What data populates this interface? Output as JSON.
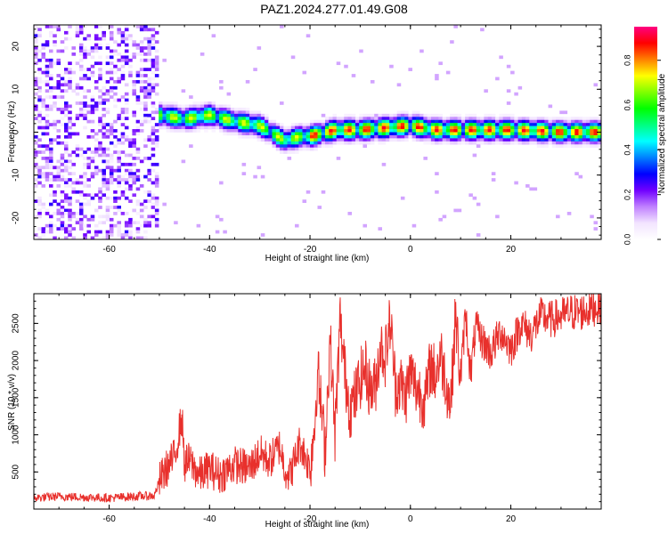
{
  "title": "PAZ1.2024.277.01.49.G08",
  "chart_data": [
    {
      "type": "heatmap",
      "xlabel": "Height of straight line (km)",
      "ylabel": "Frequency (Hz)",
      "xlim": [
        -75,
        38
      ],
      "ylim": [
        -25,
        25
      ],
      "xticks": [
        -60,
        -40,
        -20,
        0,
        20
      ],
      "yticks": [
        -20,
        -10,
        0,
        10,
        20
      ],
      "colorbar": {
        "label": "Normalized spectral amplitude",
        "range": [
          0,
          0.95
        ],
        "ticks": [
          0.0,
          0.2,
          0.4,
          0.6,
          0.8
        ],
        "colors": [
          "#ffffff",
          "#f2e4ff",
          "#c080ff",
          "#7000ff",
          "#0000ff",
          "#0080ff",
          "#00ffff",
          "#00ff80",
          "#00ff00",
          "#80ff00",
          "#ffff00",
          "#ff8000",
          "#ff0000",
          "#ff0080"
        ]
      },
      "noise_region_x": [
        -75,
        -50
      ],
      "signal_track": {
        "x": [
          -50,
          -45,
          -40,
          -35,
          -30,
          -25,
          -22,
          -20,
          -15,
          -10,
          -5,
          0,
          5,
          10,
          15,
          20,
          25,
          30,
          38
        ],
        "y": [
          4,
          3,
          4,
          2.5,
          1.5,
          -2,
          -1,
          -1,
          0.5,
          0.5,
          1,
          1.5,
          0.5,
          0.5,
          0.5,
          0.5,
          0.3,
          0,
          0
        ]
      }
    },
    {
      "type": "line",
      "xlabel": "Height of straight line (km)",
      "ylabel": "SNR (10 * v/v)",
      "xlim": [
        -75,
        38
      ],
      "ylim": [
        0,
        2900
      ],
      "xticks": [
        -60,
        -40,
        -20,
        0,
        20
      ],
      "yticks": [
        500,
        1000,
        1500,
        2000,
        2500
      ],
      "color": "#e8302c",
      "series": [
        {
          "x": [
            -75,
            -70,
            -65,
            -60,
            -55,
            -51,
            -50,
            -49,
            -47,
            -45.5,
            -45,
            -44,
            -42,
            -40,
            -38,
            -35,
            -32,
            -30,
            -28,
            -26,
            -25,
            -24,
            -22,
            -20,
            -19,
            -18.5,
            -17,
            -16,
            -15,
            -14,
            -13,
            -12,
            -11,
            -10,
            -9,
            -8,
            -7,
            -6,
            -5,
            -4,
            -3,
            -2,
            -1,
            0,
            1,
            2,
            3,
            4,
            5,
            6,
            7,
            8,
            9,
            10,
            11,
            12,
            13,
            14,
            16,
            18,
            20,
            22,
            24,
            26,
            28,
            30,
            32,
            34,
            36,
            38
          ],
          "y": [
            150,
            170,
            160,
            150,
            170,
            180,
            380,
            500,
            700,
            1250,
            600,
            650,
            450,
            550,
            450,
            600,
            550,
            750,
            650,
            850,
            550,
            450,
            900,
            550,
            1200,
            1900,
            800,
            2300,
            1000,
            2550,
            1800,
            1350,
            1500,
            1750,
            1900,
            1600,
            1650,
            2200,
            2050,
            2550,
            1650,
            1700,
            1500,
            1850,
            1650,
            1550,
            1450,
            1950,
            1800,
            2100,
            1750,
            1400,
            2600,
            1750,
            2650,
            1800,
            2450,
            2300,
            2100,
            2400,
            2150,
            2500,
            2350,
            2600,
            2550,
            2600,
            2650,
            2650,
            2700,
            2750
          ]
        }
      ]
    }
  ]
}
